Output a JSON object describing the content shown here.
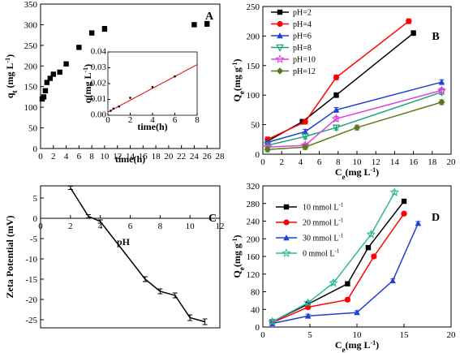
{
  "chart_data": [
    {
      "panel": "A",
      "type": "scatter",
      "xlabel": "time(h)",
      "ylabel": "qₜ (mg L⁻¹)",
      "ylabel_main": "q",
      "ylabel_sub": "t",
      "ylabel_tail": " (mg L",
      "ylabel_sup": "-1",
      "ylabel_end": ")",
      "xlim": [
        0,
        28
      ],
      "ylim": [
        0,
        350
      ],
      "xticks": [
        0,
        2,
        4,
        6,
        8,
        10,
        12,
        14,
        16,
        18,
        20,
        22,
        24,
        26,
        28
      ],
      "yticks": [
        0,
        50,
        100,
        150,
        200,
        250,
        300,
        350
      ],
      "series": [
        {
          "color": "#000000",
          "marker": "square",
          "x": [
            0.25,
            0.5,
            0.75,
            1,
            1.5,
            2,
            3,
            4,
            6,
            8,
            10,
            24,
            26
          ],
          "y": [
            120,
            125,
            140,
            160,
            170,
            180,
            185,
            205,
            245,
            280,
            290,
            300,
            302
          ],
          "err": [
            4,
            4,
            4,
            4,
            4,
            4,
            4,
            4,
            4,
            4,
            6,
            5,
            6
          ]
        }
      ],
      "inset": {
        "type": "line",
        "xlabel": "time(h)",
        "ylabel": "q(mg L⁻¹)",
        "ylabel_main": "q",
        "ylabel_tail": "(mg L",
        "ylabel_sup": "-1",
        "ylabel_end": ")",
        "xlim": [
          0,
          8
        ],
        "ylim": [
          0,
          0.04
        ],
        "xticks": [
          0,
          2,
          4,
          6,
          8
        ],
        "yticks": [
          0.0,
          0.01,
          0.02,
          0.03,
          0.04
        ],
        "ytick_labels": [
          "0.00",
          "0.01",
          "0.02",
          "0.03",
          "0.04"
        ],
        "points": {
          "x": [
            0.25,
            0.5,
            1,
            2,
            4,
            6
          ],
          "y": [
            0.0028,
            0.0042,
            0.0055,
            0.011,
            0.0178,
            0.0245
          ]
        },
        "fit_line": {
          "x": [
            0,
            8
          ],
          "y": [
            0.002,
            0.032
          ],
          "color": "#e60000"
        }
      }
    },
    {
      "panel": "B",
      "type": "line",
      "xlabel_main": "C",
      "xlabel_sub": "e",
      "xlabel_tail": "(mg L",
      "xlabel_sup": "-1",
      "xlabel_end": ")",
      "ylabel_main": "Q",
      "ylabel_sub": "e",
      "ylabel_tail": "(mg g",
      "ylabel_sup": "-1",
      "ylabel_end": ")",
      "xlim": [
        0,
        20
      ],
      "ylim": [
        0,
        250
      ],
      "xticks": [
        0,
        2,
        4,
        6,
        8,
        10,
        12,
        14,
        16,
        18,
        20
      ],
      "yticks": [
        0,
        50,
        100,
        150,
        200,
        250
      ],
      "legend_position": "top-left",
      "series": [
        {
          "name": "pH=2",
          "color": "#000000",
          "marker": "square",
          "x": [
            0.5,
            4.2,
            7.8,
            16
          ],
          "y": [
            22,
            55,
            100,
            205
          ]
        },
        {
          "name": "pH=4",
          "color": "#ff0000",
          "marker": "circle",
          "x": [
            0.5,
            4.5,
            7.8,
            15.5
          ],
          "y": [
            25,
            55,
            130,
            225
          ]
        },
        {
          "name": "pH=6",
          "color": "#1f3fd6",
          "marker": "triangle",
          "x": [
            0.5,
            4.5,
            7.8,
            19
          ],
          "y": [
            20,
            38,
            75,
            122
          ]
        },
        {
          "name": "pH=8",
          "color": "#1aa37a",
          "marker": "triangle-down",
          "x": [
            0.5,
            4.5,
            7.8,
            19
          ],
          "y": [
            15,
            30,
            45,
            105
          ]
        },
        {
          "name": "pH=10",
          "color": "#e040e0",
          "marker": "star",
          "x": [
            0.5,
            4.5,
            7.8,
            19
          ],
          "y": [
            12,
            15,
            60,
            108
          ]
        },
        {
          "name": "pH=12",
          "color": "#5a7a18",
          "marker": "diamond",
          "x": [
            0.5,
            4.5,
            10,
            19
          ],
          "y": [
            8,
            12,
            45,
            88
          ]
        }
      ]
    },
    {
      "panel": "C",
      "type": "line",
      "xlabel": "pH",
      "ylabel": "Zeta Potential (mV)",
      "xlim": [
        0,
        12
      ],
      "ylim": [
        -27,
        8
      ],
      "xticks": [
        0,
        2,
        4,
        6,
        8,
        10,
        12
      ],
      "yticks": [
        5,
        0,
        -5,
        -10,
        -15,
        -20,
        -25
      ],
      "series": [
        {
          "color": "#000000",
          "marker": "none",
          "x": [
            2,
            3.2,
            4,
            7,
            8,
            9,
            10,
            11
          ],
          "y": [
            7.5,
            0.5,
            -0.8,
            -15,
            -18,
            -19,
            -24.5,
            -25.5
          ],
          "err": [
            0.4,
            0.4,
            0.4,
            0.6,
            0.6,
            0.6,
            0.7,
            0.7
          ]
        }
      ]
    },
    {
      "panel": "D",
      "type": "line",
      "xlabel_main": "C",
      "xlabel_sub": "e",
      "xlabel_tail": "(mg L",
      "xlabel_sup": "-1",
      "xlabel_end": ")",
      "ylabel_main": "Q",
      "ylabel_sub": "e",
      "ylabel_tail": "(mg g",
      "ylabel_sup": "-1",
      "ylabel_end": ")",
      "xlim": [
        0,
        20
      ],
      "ylim": [
        0,
        320
      ],
      "xticks": [
        0,
        5,
        10,
        15,
        20
      ],
      "yticks": [
        0,
        40,
        80,
        120,
        160,
        200,
        240,
        280,
        320
      ],
      "legend_position": "top-left",
      "series": [
        {
          "name": "10 mmol L",
          "name_sup": "-1",
          "color": "#000000",
          "marker": "square",
          "x": [
            1,
            4.8,
            9,
            11.2,
            15
          ],
          "y": [
            12,
            52,
            98,
            180,
            285
          ]
        },
        {
          "name": "20 mmol L",
          "name_sup": "-1",
          "color": "#ff0000",
          "marker": "circle",
          "x": [
            1,
            4.8,
            9,
            11.8,
            15
          ],
          "y": [
            10,
            45,
            62,
            160,
            257
          ]
        },
        {
          "name": "30 mmol L",
          "name_sup": "-1",
          "color": "#1f3fd6",
          "marker": "triangle",
          "x": [
            1,
            4.8,
            10,
            13.8,
            16.5
          ],
          "y": [
            8,
            25,
            33,
            105,
            235
          ]
        },
        {
          "name": "0 mmol L",
          "name_sup": "-1",
          "color": "#2fb89a",
          "marker": "star",
          "x": [
            1,
            4.8,
            7.5,
            11.5,
            14
          ],
          "y": [
            12,
            55,
            100,
            210,
            305
          ]
        }
      ]
    }
  ]
}
